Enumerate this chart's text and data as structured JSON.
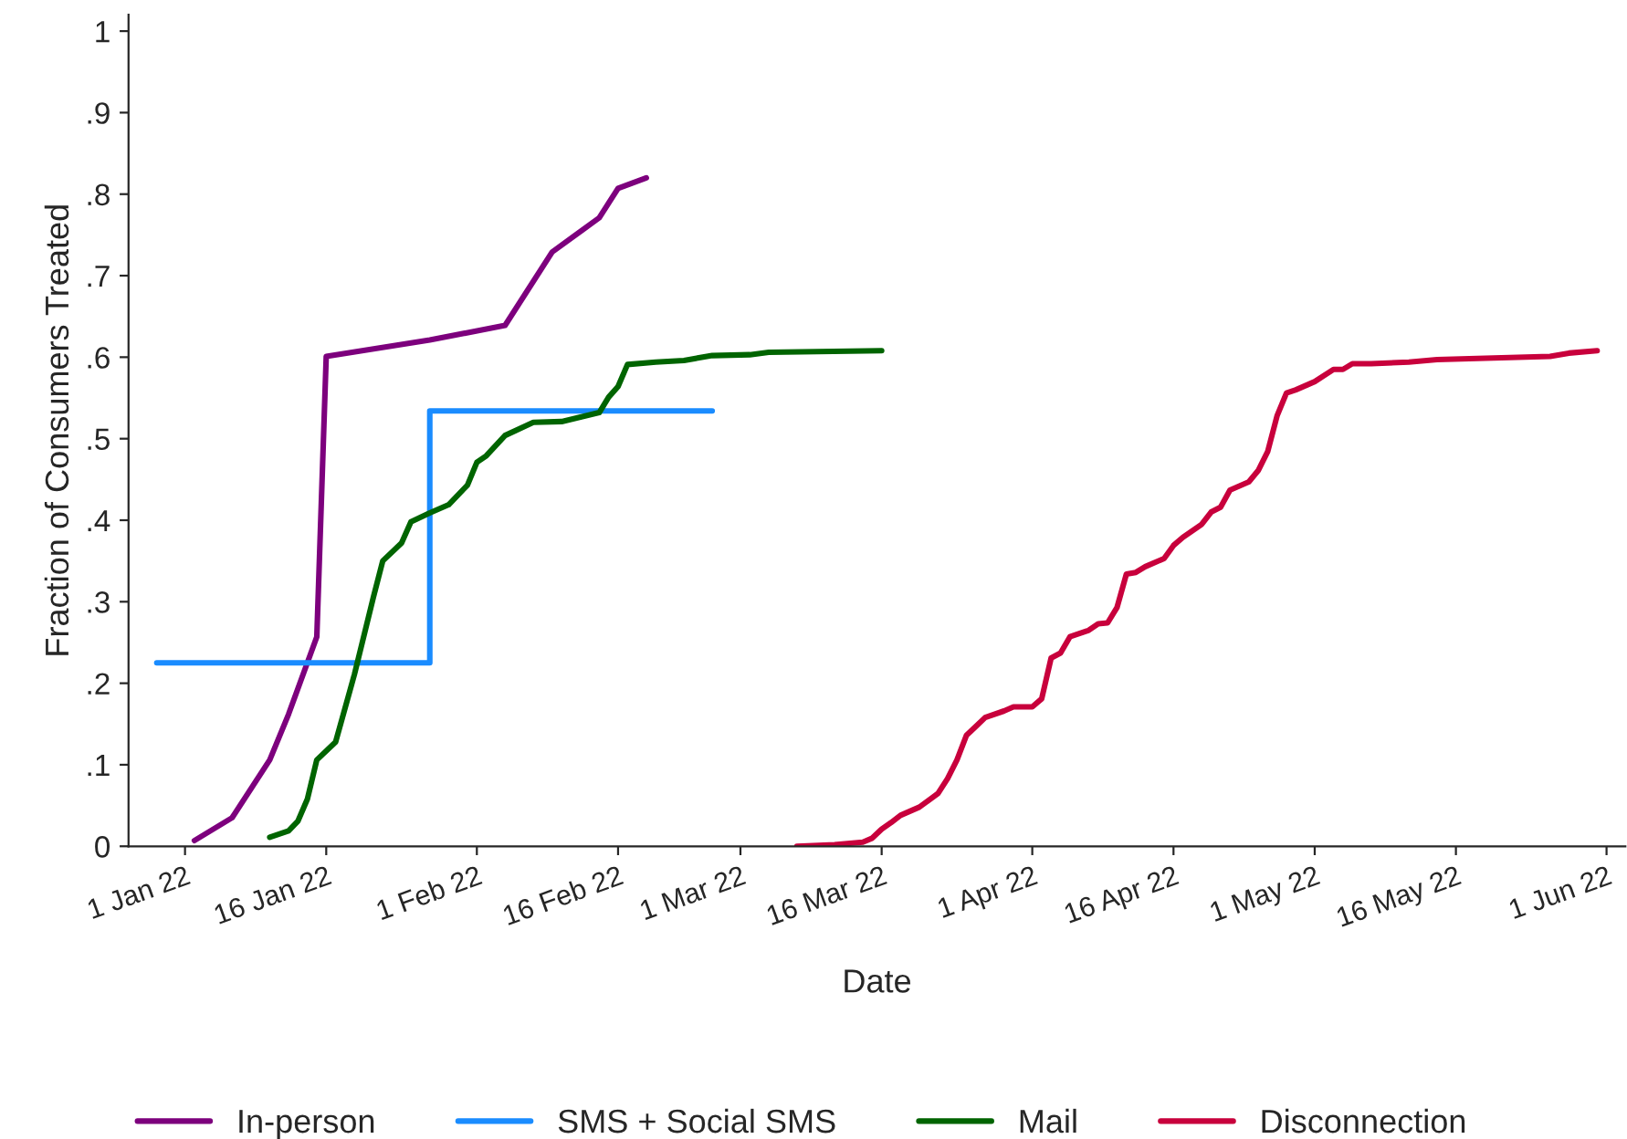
{
  "chart_data": {
    "type": "line",
    "xlabel": "Date",
    "ylabel": "Fraction of Consumers Treated",
    "xlim": [
      "2021-12-26",
      "2022-06-03"
    ],
    "ylim": [
      0,
      1.02
    ],
    "xticks": [
      {
        "value": "2022-01-01",
        "label": "1 Jan 22"
      },
      {
        "value": "2022-01-16",
        "label": "16 Jan 22"
      },
      {
        "value": "2022-02-01",
        "label": "1 Feb 22"
      },
      {
        "value": "2022-02-16",
        "label": "16 Feb 22"
      },
      {
        "value": "2022-03-01",
        "label": "1 Mar 22"
      },
      {
        "value": "2022-03-16",
        "label": "16 Mar 22"
      },
      {
        "value": "2022-04-01",
        "label": "1 Apr 22"
      },
      {
        "value": "2022-04-16",
        "label": "16 Apr 22"
      },
      {
        "value": "2022-05-01",
        "label": "1 May 22"
      },
      {
        "value": "2022-05-16",
        "label": "16 May 22"
      },
      {
        "value": "2022-06-01",
        "label": "1 Jun 22"
      }
    ],
    "yticks": [
      0,
      {
        "value": 0.1,
        "label": ".1"
      },
      {
        "value": 0.2,
        "label": ".2"
      },
      {
        "value": 0.3,
        "label": ".3"
      },
      {
        "value": 0.4,
        "label": ".4"
      },
      {
        "value": 0.5,
        "label": ".5"
      },
      {
        "value": 0.6,
        "label": ".6"
      },
      {
        "value": 0.7,
        "label": ".7"
      },
      {
        "value": 0.8,
        "label": ".8"
      },
      {
        "value": 0.9,
        "label": ".9"
      },
      1
    ],
    "grid": false,
    "legend": "bottom",
    "line_style": "solid",
    "marker": "none",
    "series": [
      {
        "name": "In-person",
        "color": "#7d007d",
        "x": [
          "2022-01-02",
          "2022-01-06",
          "2022-01-10",
          "2022-01-12",
          "2022-01-15",
          "2022-01-16",
          "2022-01-27",
          "2022-02-04",
          "2022-02-09",
          "2022-02-14",
          "2022-02-16",
          "2022-02-19"
        ],
        "values": [
          0.007,
          0.035,
          0.106,
          0.162,
          0.257,
          0.601,
          0.621,
          0.639,
          0.729,
          0.771,
          0.807,
          0.82
        ]
      },
      {
        "name": "SMS + Social SMS",
        "color": "#1a8cff",
        "type": "step",
        "x": [
          "2021-12-29",
          "2022-01-27",
          "2022-02-26"
        ],
        "values": [
          0.225,
          0.534,
          0.534
        ]
      },
      {
        "name": "Mail",
        "color": "#006400",
        "x": [
          "2022-01-10",
          "2022-01-12",
          "2022-01-13",
          "2022-01-14",
          "2022-01-15",
          "2022-01-17",
          "2022-01-19",
          "2022-01-21",
          "2022-01-22",
          "2022-01-24",
          "2022-01-25",
          "2022-01-27",
          "2022-01-29",
          "2022-01-31",
          "2022-02-01",
          "2022-02-02",
          "2022-02-04",
          "2022-02-07",
          "2022-02-10",
          "2022-02-14",
          "2022-02-15",
          "2022-02-16",
          "2022-02-17",
          "2022-02-20",
          "2022-02-23",
          "2022-02-26",
          "2022-03-02",
          "2022-03-04",
          "2022-03-16"
        ],
        "values": [
          0.011,
          0.019,
          0.031,
          0.058,
          0.106,
          0.128,
          0.211,
          0.305,
          0.35,
          0.372,
          0.398,
          0.409,
          0.419,
          0.443,
          0.471,
          0.479,
          0.504,
          0.52,
          0.521,
          0.532,
          0.551,
          0.564,
          0.591,
          0.594,
          0.596,
          0.602,
          0.603,
          0.606,
          0.608
        ]
      },
      {
        "name": "Disconnection",
        "color": "#c8003c",
        "x": [
          "2022-03-07",
          "2022-03-11",
          "2022-03-14",
          "2022-03-15",
          "2022-03-16",
          "2022-03-17",
          "2022-03-18",
          "2022-03-20",
          "2022-03-22",
          "2022-03-23",
          "2022-03-24",
          "2022-03-25",
          "2022-03-26",
          "2022-03-27",
          "2022-03-29",
          "2022-03-30",
          "2022-04-01",
          "2022-04-02",
          "2022-04-03",
          "2022-04-04",
          "2022-04-05",
          "2022-04-07",
          "2022-04-08",
          "2022-04-09",
          "2022-04-10",
          "2022-04-11",
          "2022-04-12",
          "2022-04-13",
          "2022-04-15",
          "2022-04-16",
          "2022-04-17",
          "2022-04-19",
          "2022-04-20",
          "2022-04-21",
          "2022-04-22",
          "2022-04-23",
          "2022-04-24",
          "2022-04-25",
          "2022-04-26",
          "2022-04-27",
          "2022-04-28",
          "2022-04-29",
          "2022-05-01",
          "2022-05-03",
          "2022-05-04",
          "2022-05-05",
          "2022-05-07",
          "2022-05-11",
          "2022-05-14",
          "2022-05-20",
          "2022-05-26",
          "2022-05-28",
          "2022-05-31"
        ],
        "values": [
          0,
          0.002,
          0.005,
          0.01,
          0.021,
          0.029,
          0.038,
          0.048,
          0.065,
          0.083,
          0.106,
          0.136,
          0.147,
          0.158,
          0.166,
          0.171,
          0.171,
          0.181,
          0.231,
          0.237,
          0.257,
          0.265,
          0.273,
          0.274,
          0.293,
          0.334,
          0.336,
          0.343,
          0.353,
          0.369,
          0.379,
          0.395,
          0.41,
          0.416,
          0.437,
          0.442,
          0.447,
          0.461,
          0.484,
          0.528,
          0.556,
          0.56,
          0.57,
          0.585,
          0.585,
          0.592,
          0.592,
          0.594,
          0.597,
          0.599,
          0.601,
          0.605,
          0.608
        ]
      }
    ]
  }
}
